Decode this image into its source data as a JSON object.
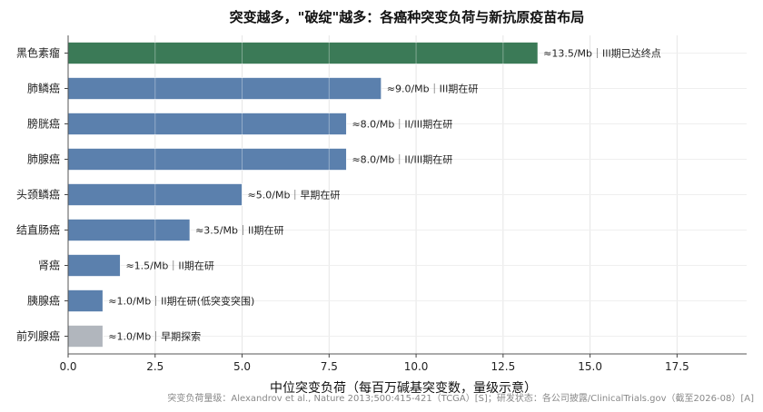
{
  "chart_data": {
    "type": "bar",
    "orientation": "horizontal",
    "title": "突变越多，\"破绽\"越多：各癌种突变负荷与新抗原疫苗布局",
    "xlabel": "中位突变负荷（每百万碱基突变数，量级示意）",
    "xlim": [
      0,
      19.5
    ],
    "xticks": [
      0.0,
      2.5,
      5.0,
      7.5,
      10.0,
      12.5,
      15.0,
      17.5
    ],
    "xtick_labels": [
      "0.0",
      "2.5",
      "5.0",
      "7.5",
      "10.0",
      "12.5",
      "15.0",
      "17.5"
    ],
    "grid": true,
    "categories": [
      "黑色素瘤",
      "肺鳞癌",
      "膀胱癌",
      "肺腺癌",
      "头颈鳞癌",
      "结直肠癌",
      "肾癌",
      "胰腺癌",
      "前列腺癌"
    ],
    "values": [
      13.5,
      9.0,
      8.0,
      8.0,
      5.0,
      3.5,
      1.5,
      1.0,
      1.0
    ],
    "bar_labels": [
      "≈13.5/Mb｜III期已达终点",
      "≈9.0/Mb｜III期在研",
      "≈8.0/Mb｜II/III期在研",
      "≈8.0/Mb｜II/III期在研",
      "≈5.0/Mb｜早期在研",
      "≈3.5/Mb｜II期在研",
      "≈1.5/Mb｜II期在研",
      "≈1.0/Mb｜II期在研(低突变突围)",
      "≈1.0/Mb｜早期探索"
    ],
    "colors": [
      "#3b7a57",
      "#5b80ad",
      "#5b80ad",
      "#5b80ad",
      "#5b80ad",
      "#5b80ad",
      "#5b80ad",
      "#5b80ad",
      "#b1b6bd"
    ]
  },
  "footnote": "突变负荷量级：Alexandrov et al., Nature 2013;500:415-421（TCGA）[S]；研发状态：各公司披露/ClinicalTrials.gov（截至2026-08）[A]"
}
